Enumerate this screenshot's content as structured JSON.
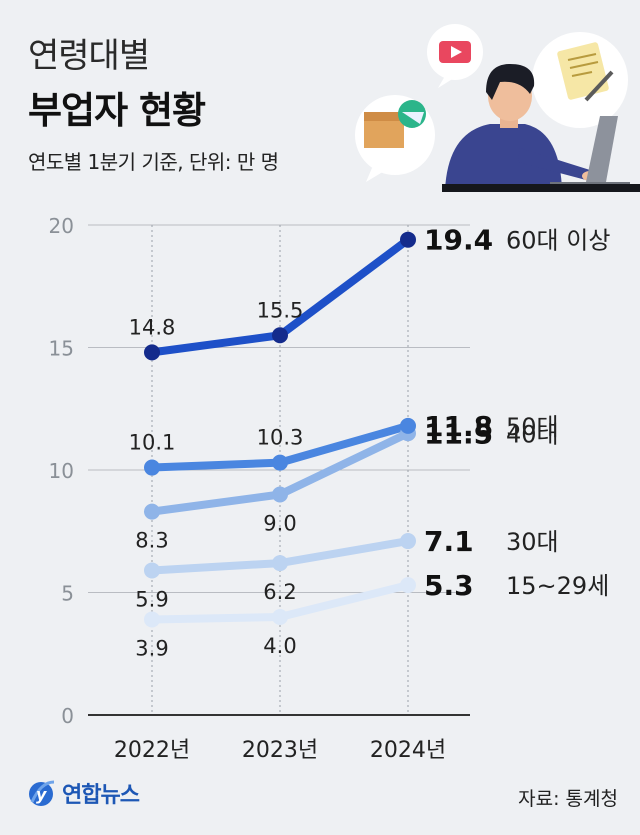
{
  "header": {
    "title_light": "연령대별",
    "title_bold": "부업자 현황",
    "subtitle": "연도별 1분기 기준, 단위: 만 명"
  },
  "footer": {
    "source": "자료: 통계청",
    "logo_text": "연합뉴스"
  },
  "chart_data": {
    "type": "line",
    "title": "부업자 현황",
    "x": [
      "2022년",
      "2023년",
      "2024년"
    ],
    "ylim": [
      0,
      20
    ],
    "yticks": [
      0,
      5,
      10,
      15,
      20
    ],
    "grid": true,
    "series": [
      {
        "name": "60대 이상",
        "values": [
          14.8,
          15.5,
          19.4
        ],
        "color": "#1e50c8",
        "point_color": "#142b8c",
        "labels": [
          "14.8",
          "15.5",
          "19.4"
        ]
      },
      {
        "name": "50대",
        "values": [
          10.1,
          10.3,
          11.8
        ],
        "color": "#4a86e0",
        "point_color": "#4a86e0",
        "labels": [
          "10.1",
          "10.3",
          "11.8"
        ]
      },
      {
        "name": "40대",
        "values": [
          8.3,
          9.0,
          11.5
        ],
        "color": "#8fb4e8",
        "point_color": "#8fb4e8",
        "labels": [
          "8.3",
          "9.0",
          "11.5"
        ]
      },
      {
        "name": "30대",
        "values": [
          5.9,
          6.2,
          7.1
        ],
        "color": "#bcd3f1",
        "point_color": "#bcd3f1",
        "labels": [
          "5.9",
          "6.2",
          "7.1"
        ]
      },
      {
        "name": "15~29세",
        "values": [
          3.9,
          4.0,
          5.3
        ],
        "color": "#dce8f8",
        "point_color": "#dce8f8",
        "labels": [
          "3.9",
          "4.0",
          "5.3"
        ]
      }
    ]
  }
}
